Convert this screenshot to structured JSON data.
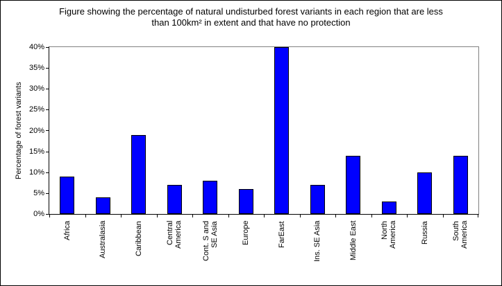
{
  "chart_data": {
    "type": "bar",
    "title": "Figure showing the percentage of natural undisturbed forest variants in each region that are less than 100km² in extent and that have no protection",
    "title_lines": [
      "Figure showing the percentage of natural undisturbed forest variants in each region that are less",
      "than 100km² in extent and that have no protection"
    ],
    "categories": [
      "Africa",
      "Australasia",
      "Caribbean",
      "Central\nAmerica",
      "Cont. S and\nSE Asia",
      "Europe",
      "FarEast",
      "Ins. SE Asia",
      "Middle East",
      "North\nAmerica",
      "Russia",
      "South\nAmerica"
    ],
    "values": [
      9,
      4,
      19,
      7,
      8,
      6,
      40,
      7,
      14,
      3,
      10,
      14
    ],
    "unit": "%",
    "xlabel": "",
    "ylabel": "Percentage of forest variants",
    "yticks": [
      "0%",
      "5%",
      "10%",
      "15%",
      "20%",
      "25%",
      "30%",
      "35%",
      "40%"
    ],
    "ytick_values": [
      0,
      5,
      10,
      15,
      20,
      25,
      30,
      35,
      40
    ],
    "ylim": [
      0,
      40
    ],
    "grid": false,
    "legend": "none",
    "colors": {
      "bar_fill": "#0000ff",
      "bar_border": "#000000",
      "plot_border": "#808080",
      "axis": "#000000",
      "text": "#000000",
      "background": "#ffffff"
    }
  }
}
